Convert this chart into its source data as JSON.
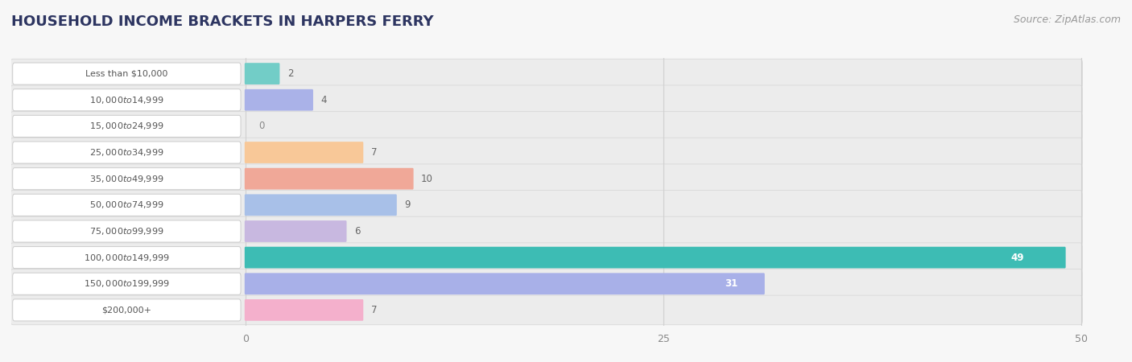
{
  "title": "HOUSEHOLD INCOME BRACKETS IN HARPERS FERRY",
  "source": "Source: ZipAtlas.com",
  "categories": [
    "Less than $10,000",
    "$10,000 to $14,999",
    "$15,000 to $24,999",
    "$25,000 to $34,999",
    "$35,000 to $49,999",
    "$50,000 to $74,999",
    "$75,000 to $99,999",
    "$100,000 to $149,999",
    "$150,000 to $199,999",
    "$200,000+"
  ],
  "values": [
    2,
    4,
    0,
    7,
    10,
    9,
    6,
    49,
    31,
    7
  ],
  "bar_colors": [
    "#72cdc7",
    "#aab2e8",
    "#f5a0b5",
    "#f8c898",
    "#f0a898",
    "#a8c0e8",
    "#c8b8e0",
    "#3dbcb4",
    "#a8b0e8",
    "#f4b0cc"
  ],
  "row_bg_color": "#ececec",
  "row_border_color": "#d8d8d8",
  "label_bg_color": "#ffffff",
  "label_text_color": "#555555",
  "value_text_color_inside": "#ffffff",
  "value_text_color_outside": "#666666",
  "grid_color": "#d0d0d0",
  "bg_color": "#f7f7f7",
  "xlim_data": [
    0,
    50
  ],
  "xticks": [
    0,
    25,
    50
  ],
  "title_color": "#2d3561",
  "title_fontsize": 13,
  "source_fontsize": 9,
  "source_color": "#999999"
}
